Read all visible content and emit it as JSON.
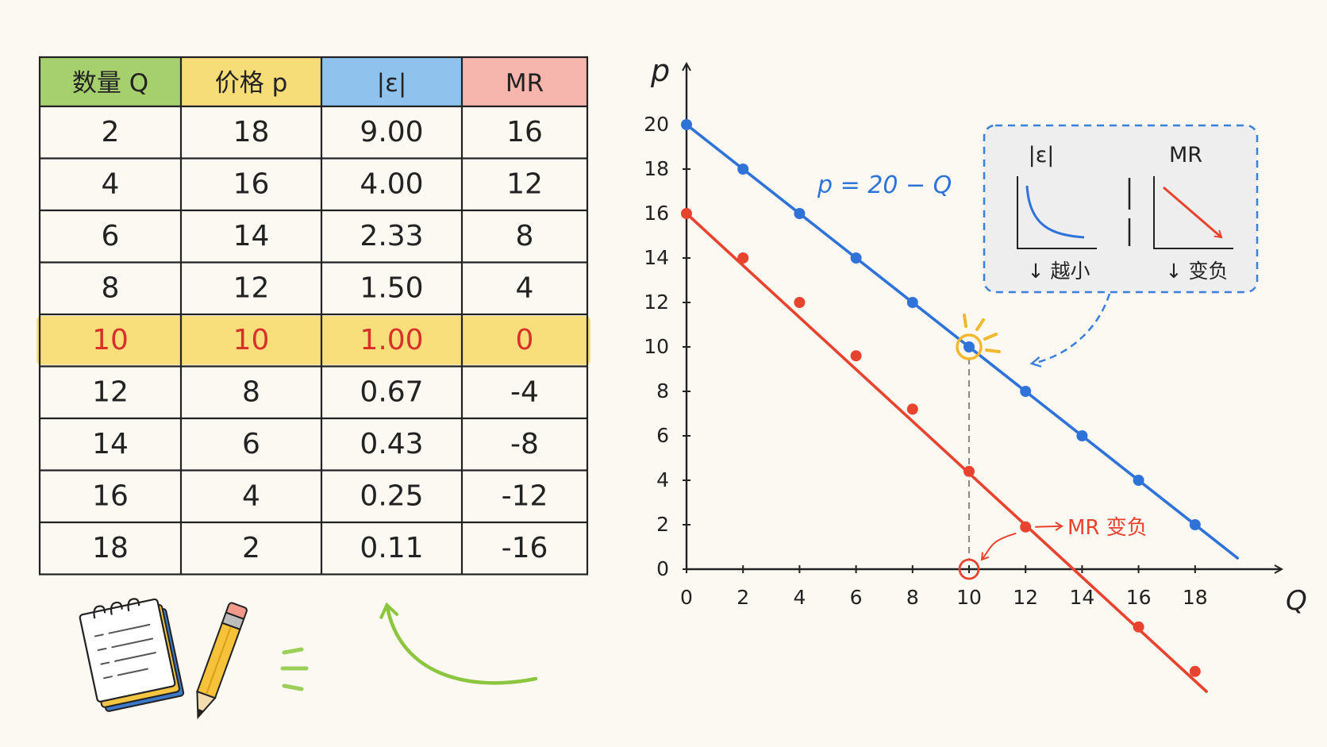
{
  "table": {
    "headers": [
      "数量 Q",
      "价格 p",
      "|ε|",
      "MR"
    ],
    "header_colors": [
      "#a6cf6e",
      "#f6dd78",
      "#8fc3ee",
      "#f6b6ae"
    ],
    "rows": [
      [
        "2",
        "18",
        "9.00",
        "16"
      ],
      [
        "4",
        "16",
        "4.00",
        "12"
      ],
      [
        "6",
        "14",
        "2.33",
        "8"
      ],
      [
        "8",
        "12",
        "1.50",
        "4"
      ],
      [
        "10",
        "10",
        "1.00",
        "0"
      ],
      [
        "12",
        "8",
        "0.67",
        "-4"
      ],
      [
        "14",
        "6",
        "0.43",
        "-8"
      ],
      [
        "16",
        "4",
        "0.25",
        "-12"
      ],
      [
        "18",
        "2",
        "0.11",
        "-16"
      ]
    ],
    "highlight_row": 4,
    "highlight_color": "#f7dc6f",
    "highlight_text_color": "#d8312a"
  },
  "chart_data": {
    "type": "line",
    "xlabel": "Q",
    "ylabel": "p",
    "xlim": [
      0,
      21
    ],
    "ylim": [
      -5.5,
      22
    ],
    "x_ticks": [
      0,
      2,
      4,
      6,
      8,
      10,
      12,
      14,
      16,
      18
    ],
    "y_ticks": [
      0,
      2,
      4,
      6,
      8,
      10,
      12,
      14,
      16,
      18,
      20
    ],
    "grid": false,
    "series": [
      {
        "name": "p = 20 − Q",
        "color": "#2f73d9",
        "line_x": [
          0,
          19.5
        ],
        "line_y": [
          20,
          0.5
        ],
        "x": [
          0,
          2,
          4,
          6,
          8,
          10,
          12,
          14,
          16,
          18
        ],
        "y": [
          20,
          18,
          16,
          14,
          12,
          10,
          8,
          6,
          4,
          2
        ]
      },
      {
        "name": "",
        "color": "#e8432f",
        "line_x": [
          0,
          18.4
        ],
        "line_y": [
          16,
          -5.5
        ],
        "x": [
          0,
          2,
          4,
          6,
          8,
          10,
          12,
          16,
          18
        ],
        "y": [
          16,
          14,
          12,
          9.6,
          7.2,
          4.4,
          1.9,
          -2.6,
          -4.6
        ]
      }
    ],
    "highlight_point": {
      "x": 10,
      "y": 10
    },
    "zero_marker": {
      "x": 10,
      "y": 0
    },
    "mr_note": "MR 变负",
    "inset": {
      "left_label": "|ε|",
      "right_label": "MR",
      "left_caption": "↓ 越小",
      "right_caption": "↓ 变负"
    }
  }
}
